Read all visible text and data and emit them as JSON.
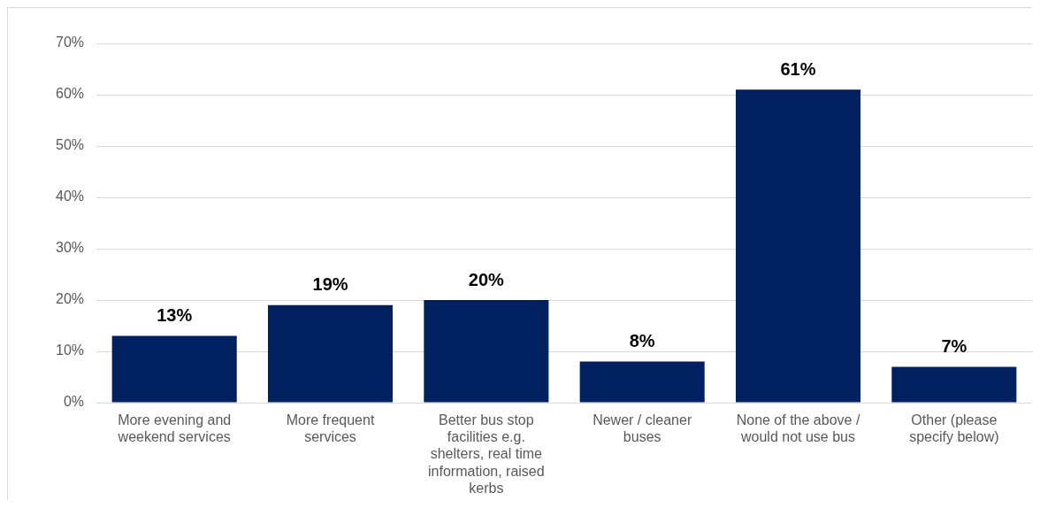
{
  "chart_data": {
    "type": "bar",
    "categories": [
      "More evening and weekend services",
      "More frequent services",
      "Better bus stop facilities e.g. shelters, real time information, raised kerbs",
      "Newer / cleaner buses",
      "None of the above / would not use bus",
      "Other (please specify below)"
    ],
    "values": [
      13,
      19,
      20,
      8,
      61,
      7
    ],
    "value_labels": [
      "13%",
      "19%",
      "20%",
      "8%",
      "61%",
      "7%"
    ],
    "color": "#002060",
    "ylim": [
      0,
      70
    ],
    "yticks": [
      {
        "value": 0,
        "label": "0%"
      },
      {
        "value": 10,
        "label": "10%"
      },
      {
        "value": 20,
        "label": "20%"
      },
      {
        "value": 30,
        "label": "30%"
      },
      {
        "value": 40,
        "label": "40%"
      },
      {
        "value": 50,
        "label": "50%"
      },
      {
        "value": 60,
        "label": "60%"
      },
      {
        "value": 70,
        "label": "70%"
      }
    ],
    "grid": "y",
    "legend": false
  }
}
